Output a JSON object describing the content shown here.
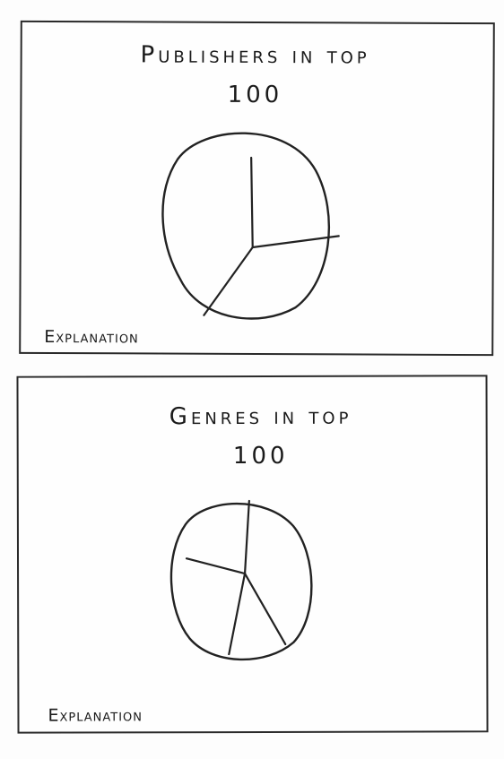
{
  "panels": [
    {
      "title": "Publishers   in   top\n100",
      "explanation": "Explanation"
    },
    {
      "title": "Genres   in   top\n100",
      "explanation": "Explanation"
    }
  ]
}
